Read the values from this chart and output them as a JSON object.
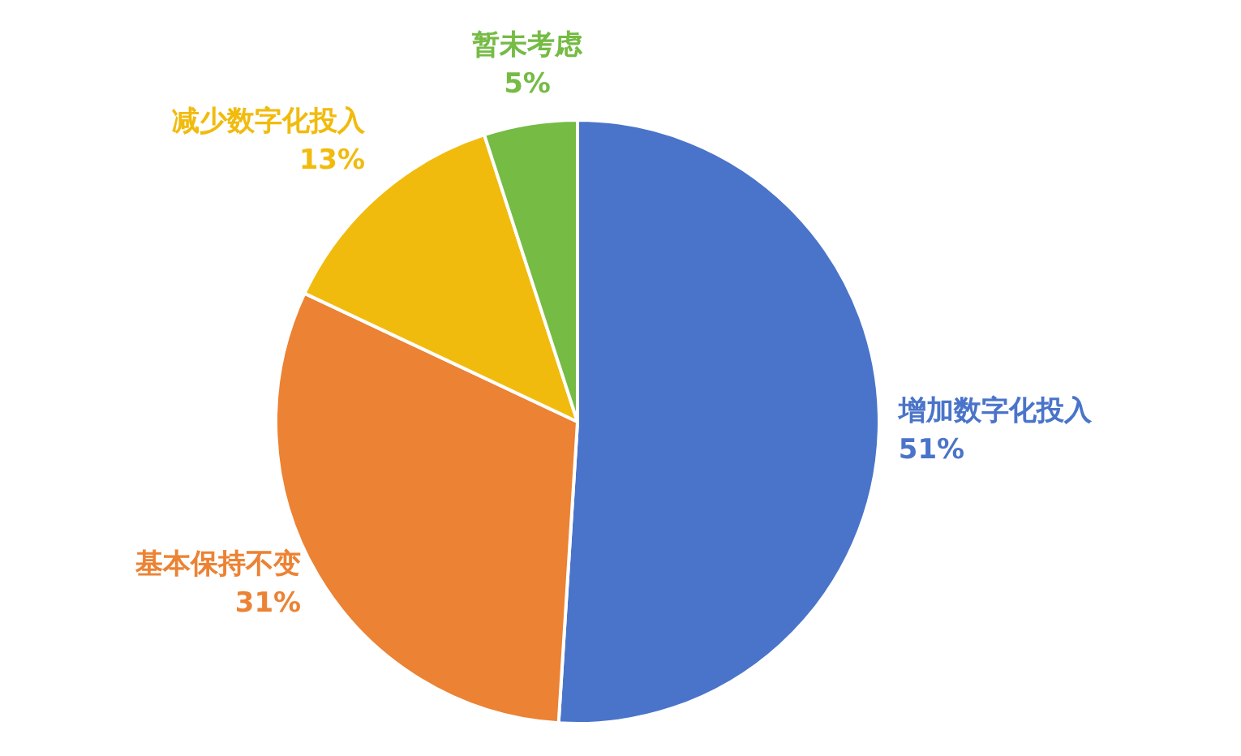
{
  "chart_data": {
    "type": "pie",
    "categories": [
      "增加数字化投入",
      "基本保持不变",
      "减少数字化投入",
      "暂未考虑"
    ],
    "values": [
      51,
      31,
      13,
      5
    ],
    "value_labels": [
      "51%",
      "31%",
      "13%",
      "5%"
    ],
    "colors": [
      "#4a74c9",
      "#ec8233",
      "#f1bb0e",
      "#75bb44"
    ],
    "legend": false
  }
}
